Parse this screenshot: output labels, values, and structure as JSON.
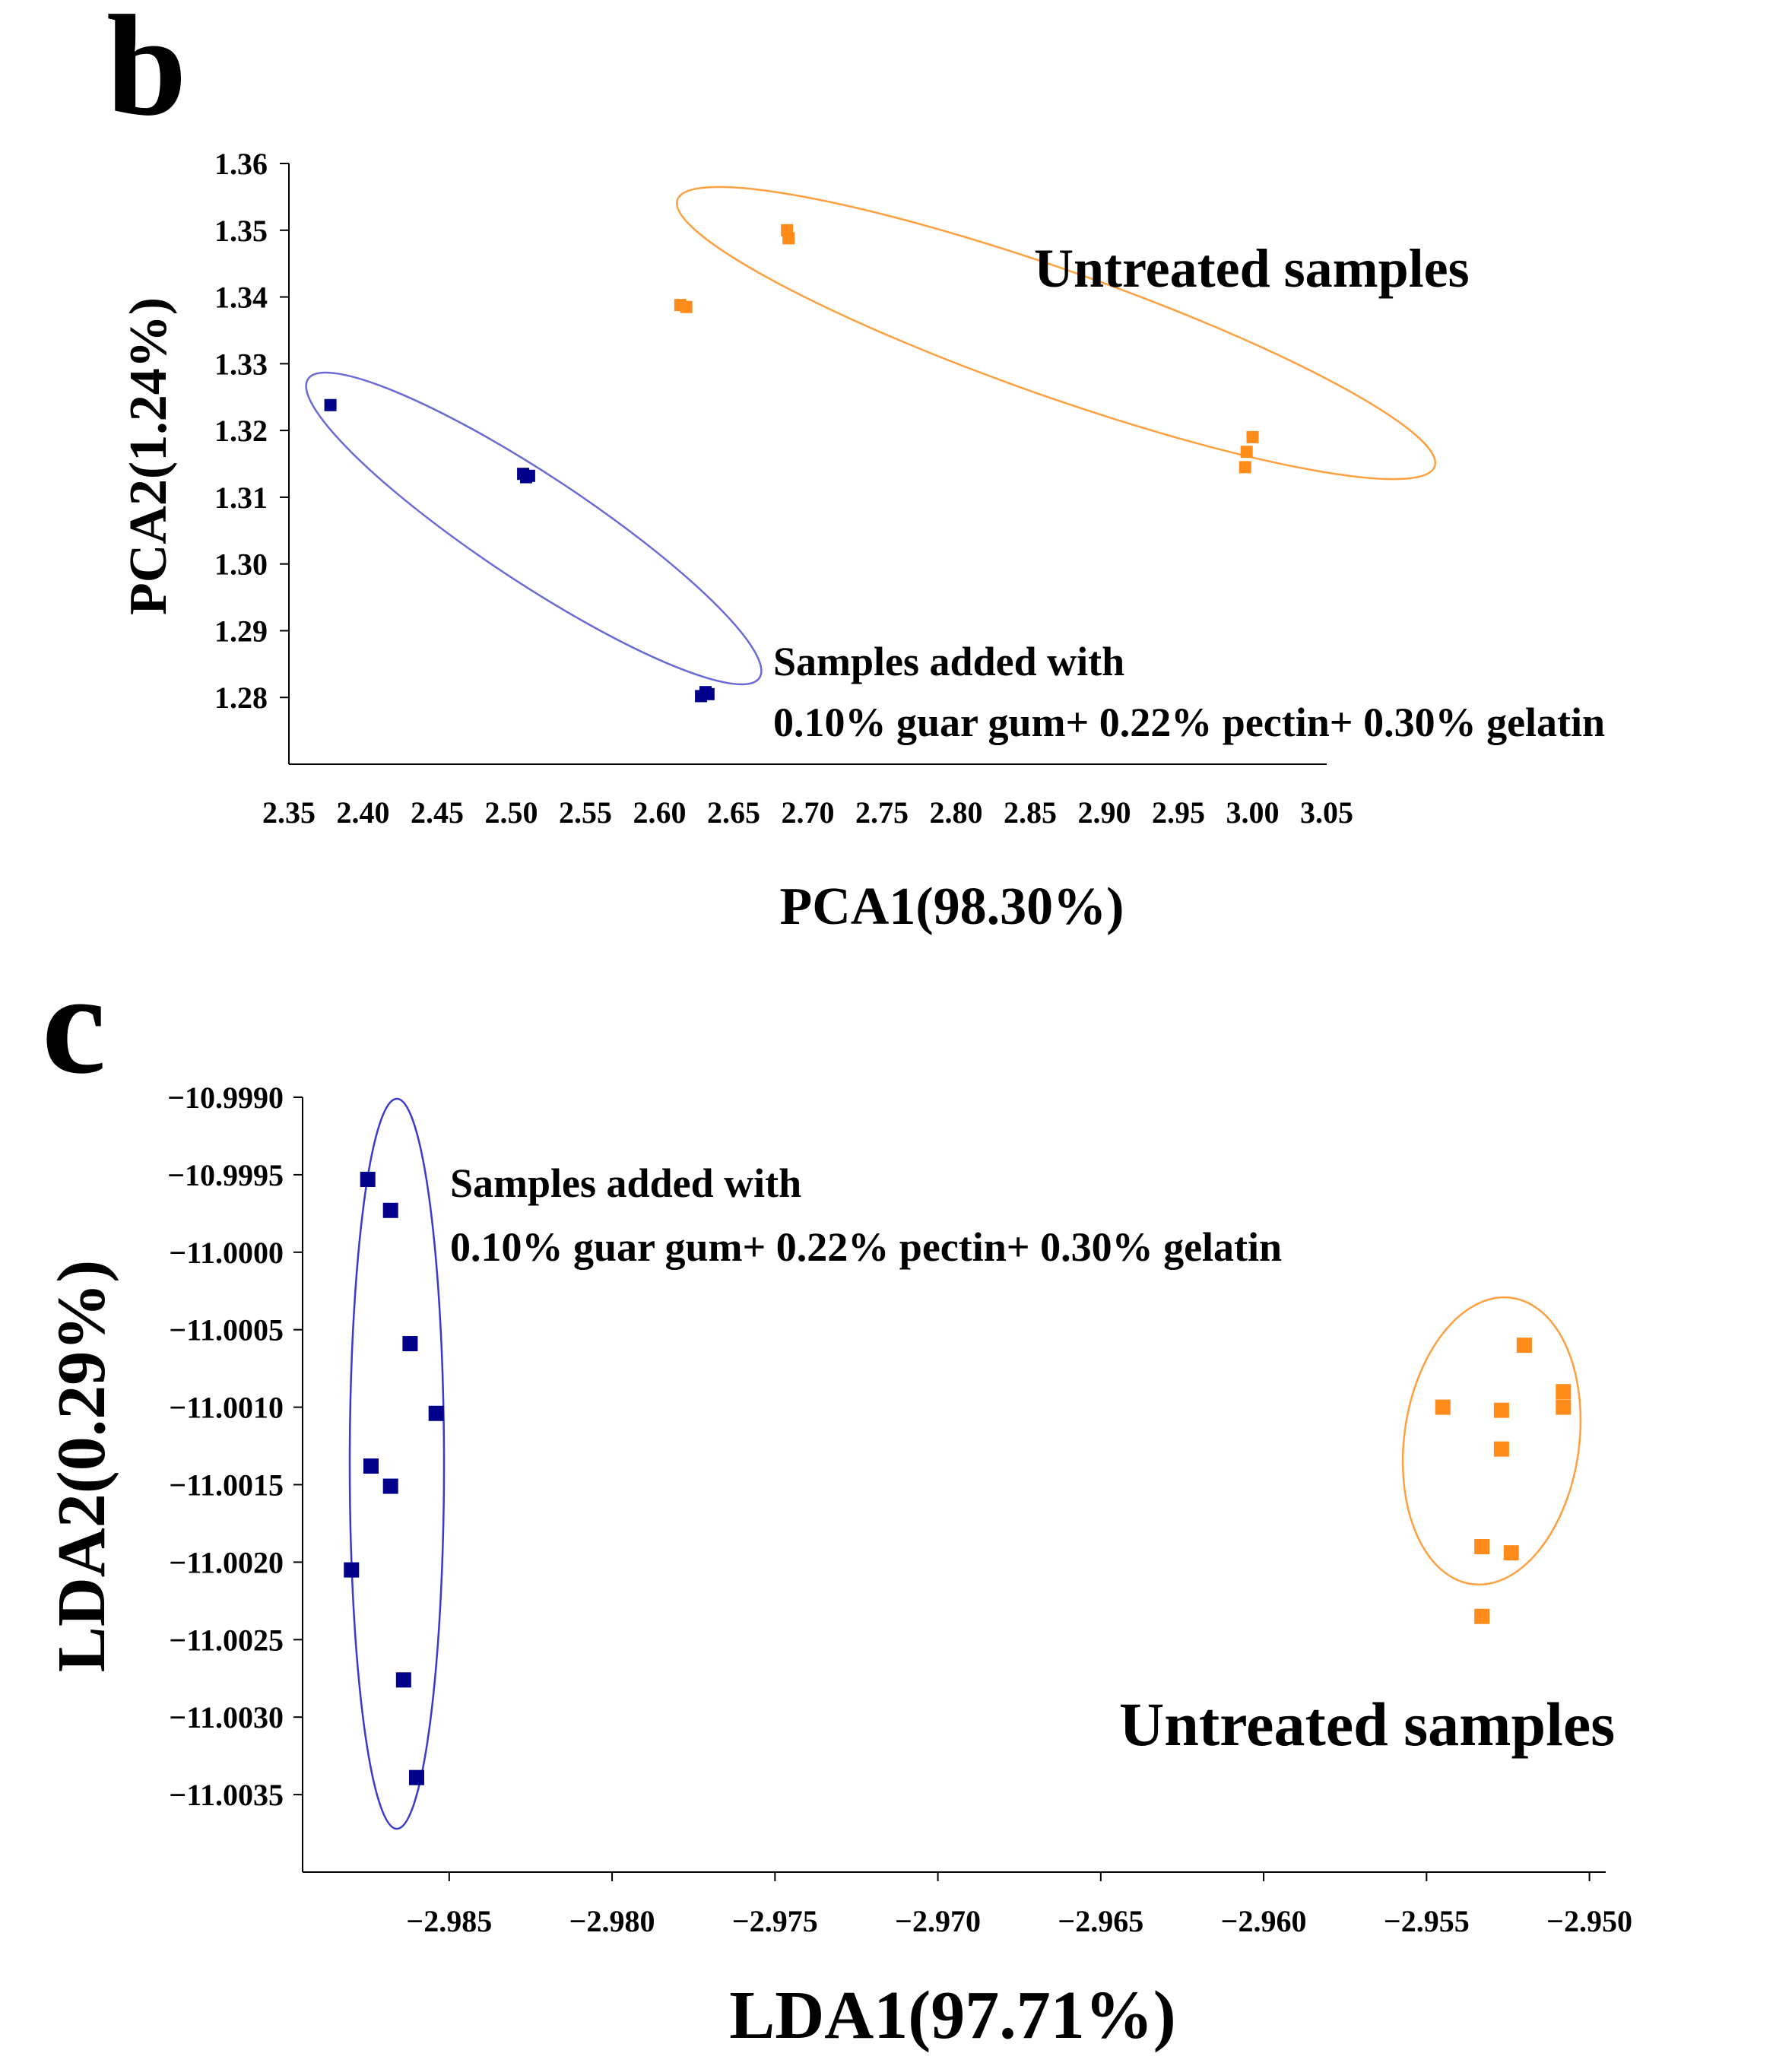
{
  "chart_data": [
    {
      "type": "scatter",
      "panel_label": "b",
      "xlabel": "PCA1(98.30%)",
      "ylabel": "PCA2(1.24%)",
      "xlim": [
        2.35,
        3.05
      ],
      "ylim": [
        1.27,
        1.36
      ],
      "x_ticks": [
        "2.35",
        "2.40",
        "2.45",
        "2.50",
        "2.55",
        "2.60",
        "2.65",
        "2.70",
        "2.75",
        "2.80",
        "2.85",
        "2.90",
        "2.95",
        "3.00",
        "3.05"
      ],
      "y_ticks": [
        "1.36",
        "1.35",
        "1.34",
        "1.33",
        "1.32",
        "1.31",
        "1.30",
        "1.29",
        "1.28"
      ],
      "series": [
        {
          "name": "Samples added with 0.10% guar gum+ 0.22% pectin+ 0.30% gelatin",
          "color": "#00008B",
          "points": [
            [
              2.378,
              1.3238
            ],
            [
              2.508,
              1.3135
            ],
            [
              2.512,
              1.3132
            ],
            [
              2.51,
              1.313
            ],
            [
              2.628,
              1.2802
            ],
            [
              2.631,
              1.2808
            ],
            [
              2.633,
              1.2805
            ]
          ]
        },
        {
          "name": "Untreated samples",
          "color": "#FF8C1A",
          "points": [
            [
              2.614,
              1.3388
            ],
            [
              2.618,
              1.3385
            ],
            [
              2.686,
              1.35
            ],
            [
              2.687,
              1.3488
            ],
            [
              2.996,
              1.3168
            ],
            [
              2.995,
              1.3145
            ],
            [
              3.0,
              1.319
            ]
          ]
        }
      ],
      "annotations": {
        "treated_line1": "Samples added with",
        "treated_line2": "0.10% guar gum+ 0.22% pectin+ 0.30% gelatin",
        "untreated": "Untreated samples"
      }
    },
    {
      "type": "scatter",
      "panel_label": "c",
      "xlabel": "LDA1(97.71%)",
      "ylabel": "LDA2(0.29%)",
      "xlim": [
        -2.9895,
        -2.9495
      ],
      "ylim": [
        -11.004,
        -10.999
      ],
      "x_ticks": [
        "-2.985",
        "-2.980",
        "-2.975",
        "-2.970",
        "-2.965",
        "-2.960",
        "-2.955",
        "-2.950"
      ],
      "y_ticks": [
        "-10.9990",
        "-10.9995",
        "-11.0000",
        "-11.0005",
        "-11.0010",
        "-11.0015",
        "-11.0020",
        "-11.0025",
        "-11.0030",
        "-11.0035"
      ],
      "series": [
        {
          "name": "Samples added with 0.10% guar gum+ 0.22% pectin+ 0.30% gelatin",
          "color": "#00008B",
          "points": [
            [
              -2.9875,
              -10.99953
            ],
            [
              -2.9868,
              -10.99973
            ],
            [
              -2.9862,
              -11.00059
            ],
            [
              -2.9854,
              -11.00104
            ],
            [
              -2.9874,
              -11.00138
            ],
            [
              -2.9868,
              -11.00151
            ],
            [
              -2.988,
              -11.00205
            ],
            [
              -2.9864,
              -11.00276
            ],
            [
              -2.986,
              -11.00339
            ]
          ]
        },
        {
          "name": "Untreated samples",
          "color": "#FF8C1A",
          "points": [
            [
              -2.9545,
              -11.001
            ],
            [
              -2.952,
              -11.0006
            ],
            [
              -2.9527,
              -11.00102
            ],
            [
              -2.9508,
              -11.0009
            ],
            [
              -2.9508,
              -11.001
            ],
            [
              -2.9527,
              -11.00127
            ],
            [
              -2.9533,
              -11.0019
            ],
            [
              -2.9524,
              -11.00194
            ],
            [
              -2.9533,
              -11.00235
            ]
          ]
        }
      ],
      "annotations": {
        "treated_line1": "Samples added with",
        "treated_line2": "0.10% guar gum+ 0.22% pectin+ 0.30% gelatin",
        "untreated": "Untreated samples"
      }
    }
  ]
}
